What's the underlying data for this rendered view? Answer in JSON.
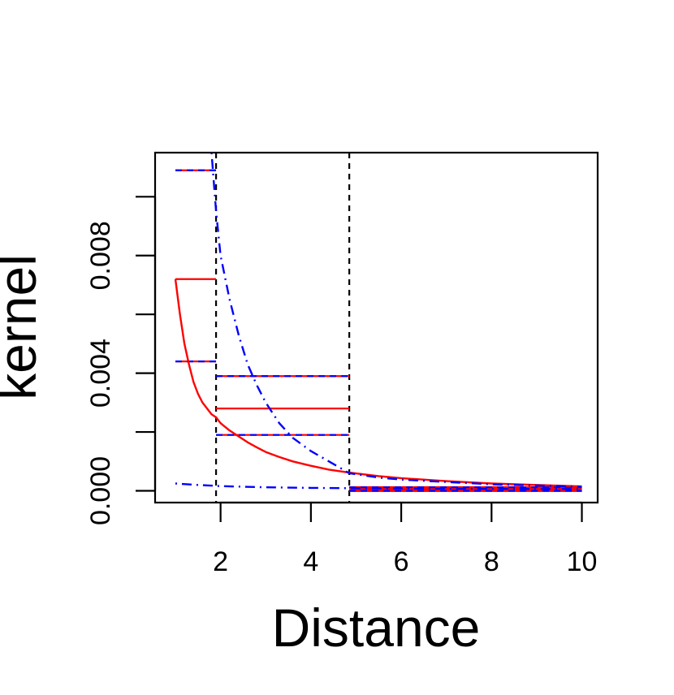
{
  "chart_data": {
    "type": "line",
    "title": "",
    "xlabel": "Distance",
    "ylabel": "kernel",
    "xlim": [
      0.55,
      10.35
    ],
    "ylim": [
      -0.0004,
      0.0115
    ],
    "x_ticks": [
      2,
      4,
      6,
      8,
      10
    ],
    "x_tick_labels": [
      "2",
      "4",
      "6",
      "8",
      "10"
    ],
    "y_ticks": [
      0,
      0.002,
      0.004,
      0.006,
      0.008,
      0.01
    ],
    "y_tick_labels": [
      "0.000",
      "",
      "0.004",
      "",
      "0.008",
      ""
    ],
    "grid": false,
    "legend": "none",
    "vlines": [
      {
        "x": 1.9,
        "color": "#000000",
        "style": "dashed"
      },
      {
        "x": 4.85,
        "color": "#000000",
        "style": "dashed"
      }
    ],
    "series": [
      {
        "color": "#ff0000",
        "style": "solid",
        "x": [
          1.0,
          1.1,
          1.2,
          1.3,
          1.4,
          1.5,
          1.6,
          1.7,
          1.8,
          1.9,
          2.0,
          2.2,
          2.4,
          2.6,
          2.8,
          3.0,
          3.3,
          3.6,
          4.0,
          4.4,
          4.85,
          5.5,
          6.0,
          7.0,
          8.0,
          9.0,
          10.0
        ],
        "y": [
          0.0072,
          0.006,
          0.005,
          0.0043,
          0.0037,
          0.0033,
          0.003,
          0.0028,
          0.0026,
          0.0025,
          0.0023,
          0.00205,
          0.00185,
          0.00165,
          0.00148,
          0.00132,
          0.00115,
          0.001,
          0.00085,
          0.00072,
          0.00062,
          0.0005,
          0.00043,
          0.00033,
          0.00025,
          0.0002,
          0.00015
        ]
      },
      {
        "color": "#0000ff",
        "style": "dotdash",
        "x": [
          1.8,
          1.9,
          2.0,
          2.2,
          2.4,
          2.6,
          2.8,
          3.0,
          3.3,
          3.6,
          4.0,
          4.4,
          4.85,
          5.5,
          6.0,
          7.0,
          8.0,
          9.0,
          10.0
        ],
        "y": [
          0.0115,
          0.0095,
          0.008,
          0.0065,
          0.0053,
          0.0043,
          0.0036,
          0.003,
          0.0023,
          0.0018,
          0.00135,
          0.001,
          0.0006,
          0.00045,
          0.00038,
          0.0003,
          0.00022,
          0.00018,
          0.00014
        ]
      },
      {
        "color": "#0000ff",
        "style": "dotdash",
        "x": [
          1.0,
          1.5,
          2.0,
          3.0,
          4.0,
          4.85,
          6.0,
          7.0,
          8.0,
          9.0,
          10.0
        ],
        "y": [
          0.00025,
          0.0002,
          0.00016,
          0.00012,
          0.0001,
          9e-05,
          8e-05,
          7e-05,
          7e-05,
          6e-05,
          6e-05
        ]
      }
    ],
    "step_segments": [
      {
        "x0": 1.0,
        "x1": 1.9,
        "y": 0.0072,
        "color": "#ff0000",
        "style": "solid"
      },
      {
        "x0": 1.0,
        "x1": 1.9,
        "y": 0.0109,
        "color": "#0000ff",
        "style": "dashed-on-red"
      },
      {
        "x0": 1.0,
        "x1": 1.9,
        "y": 0.0044,
        "color": "#0000ff",
        "style": "dashed-on-red"
      },
      {
        "x0": 1.9,
        "x1": 4.85,
        "y": 0.0028,
        "color": "#ff0000",
        "style": "solid"
      },
      {
        "x0": 1.9,
        "x1": 4.85,
        "y": 0.0039,
        "color": "#0000ff",
        "style": "dashed-on-red"
      },
      {
        "x0": 1.9,
        "x1": 4.85,
        "y": 0.0019,
        "color": "#0000ff",
        "style": "dashed-on-red"
      },
      {
        "x0": 4.85,
        "x1": 10.0,
        "y": 6e-05,
        "color": "#ff0000",
        "style": "thick"
      },
      {
        "x0": 4.85,
        "x1": 10.0,
        "y": 0.00012,
        "color": "#0000ff",
        "style": "dashed-on-red"
      },
      {
        "x0": 4.85,
        "x1": 10.0,
        "y": 0.0,
        "color": "#0000ff",
        "style": "dashed-on-red"
      }
    ]
  }
}
